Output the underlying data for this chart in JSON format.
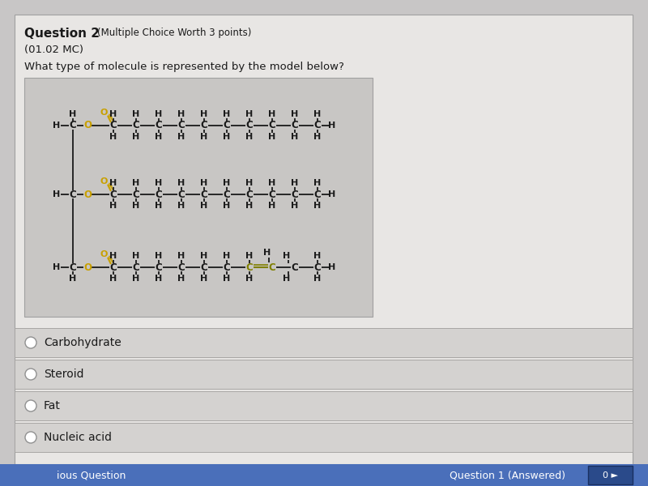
{
  "bg_color": "#c8c6c6",
  "content_bg": "#e8e6e4",
  "title_bold": "Question 2",
  "title_rest": "(Multiple Choice Worth 3 points)",
  "subtitle": "(01.02 MC)",
  "question": "What type of molecule is represented by the model below?",
  "choices": [
    "Carbohydrate",
    "Steroid",
    "Fat",
    "Nucleic acid"
  ],
  "footer_left": "ious Question",
  "footer_right": "Question 1 (Answered)",
  "footer_bg": "#4a6fba",
  "mol_box_bg": "#c8c6c4",
  "choice_bg": "#d4d2d0",
  "black": "#1a1a1a",
  "gold": "#c8a000",
  "olive_green": "#808000"
}
